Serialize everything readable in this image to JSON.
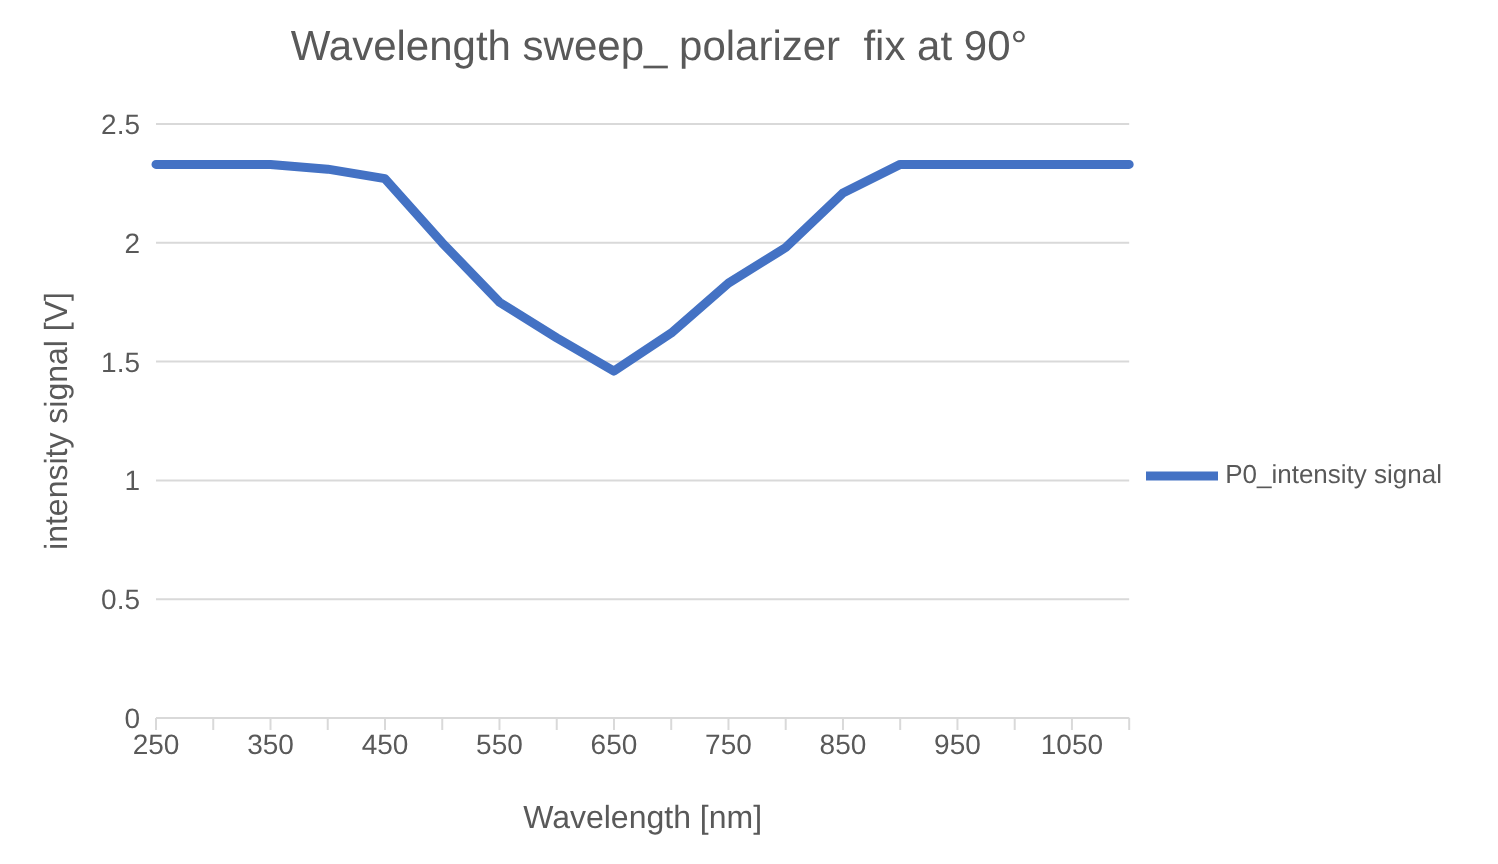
{
  "chart_data": {
    "type": "line",
    "title": "Wavelength sweep_ polarizer  fix at 90°",
    "xlabel": "Wavelength [nm]",
    "ylabel": "intensity signal [V]",
    "categories": [
      "250",
      null,
      "350",
      null,
      "450",
      null,
      "550",
      null,
      "650",
      null,
      "750",
      null,
      "850",
      null,
      "950",
      null,
      "1050",
      null
    ],
    "series": [
      {
        "name": "P0_intensity signal",
        "color": "#4472c4",
        "values": [
          2.33,
          2.33,
          2.33,
          2.31,
          2.27,
          2.0,
          1.75,
          1.6,
          1.46,
          1.62,
          1.83,
          1.98,
          2.21,
          2.33,
          2.33,
          2.33,
          2.33,
          2.33
        ]
      }
    ],
    "ylim": [
      0,
      2.5
    ],
    "yticks": [
      0,
      0.5,
      1,
      1.5,
      2,
      2.5
    ],
    "grid": "y",
    "legend": "right",
    "marker": "none",
    "line_style": "solid"
  }
}
